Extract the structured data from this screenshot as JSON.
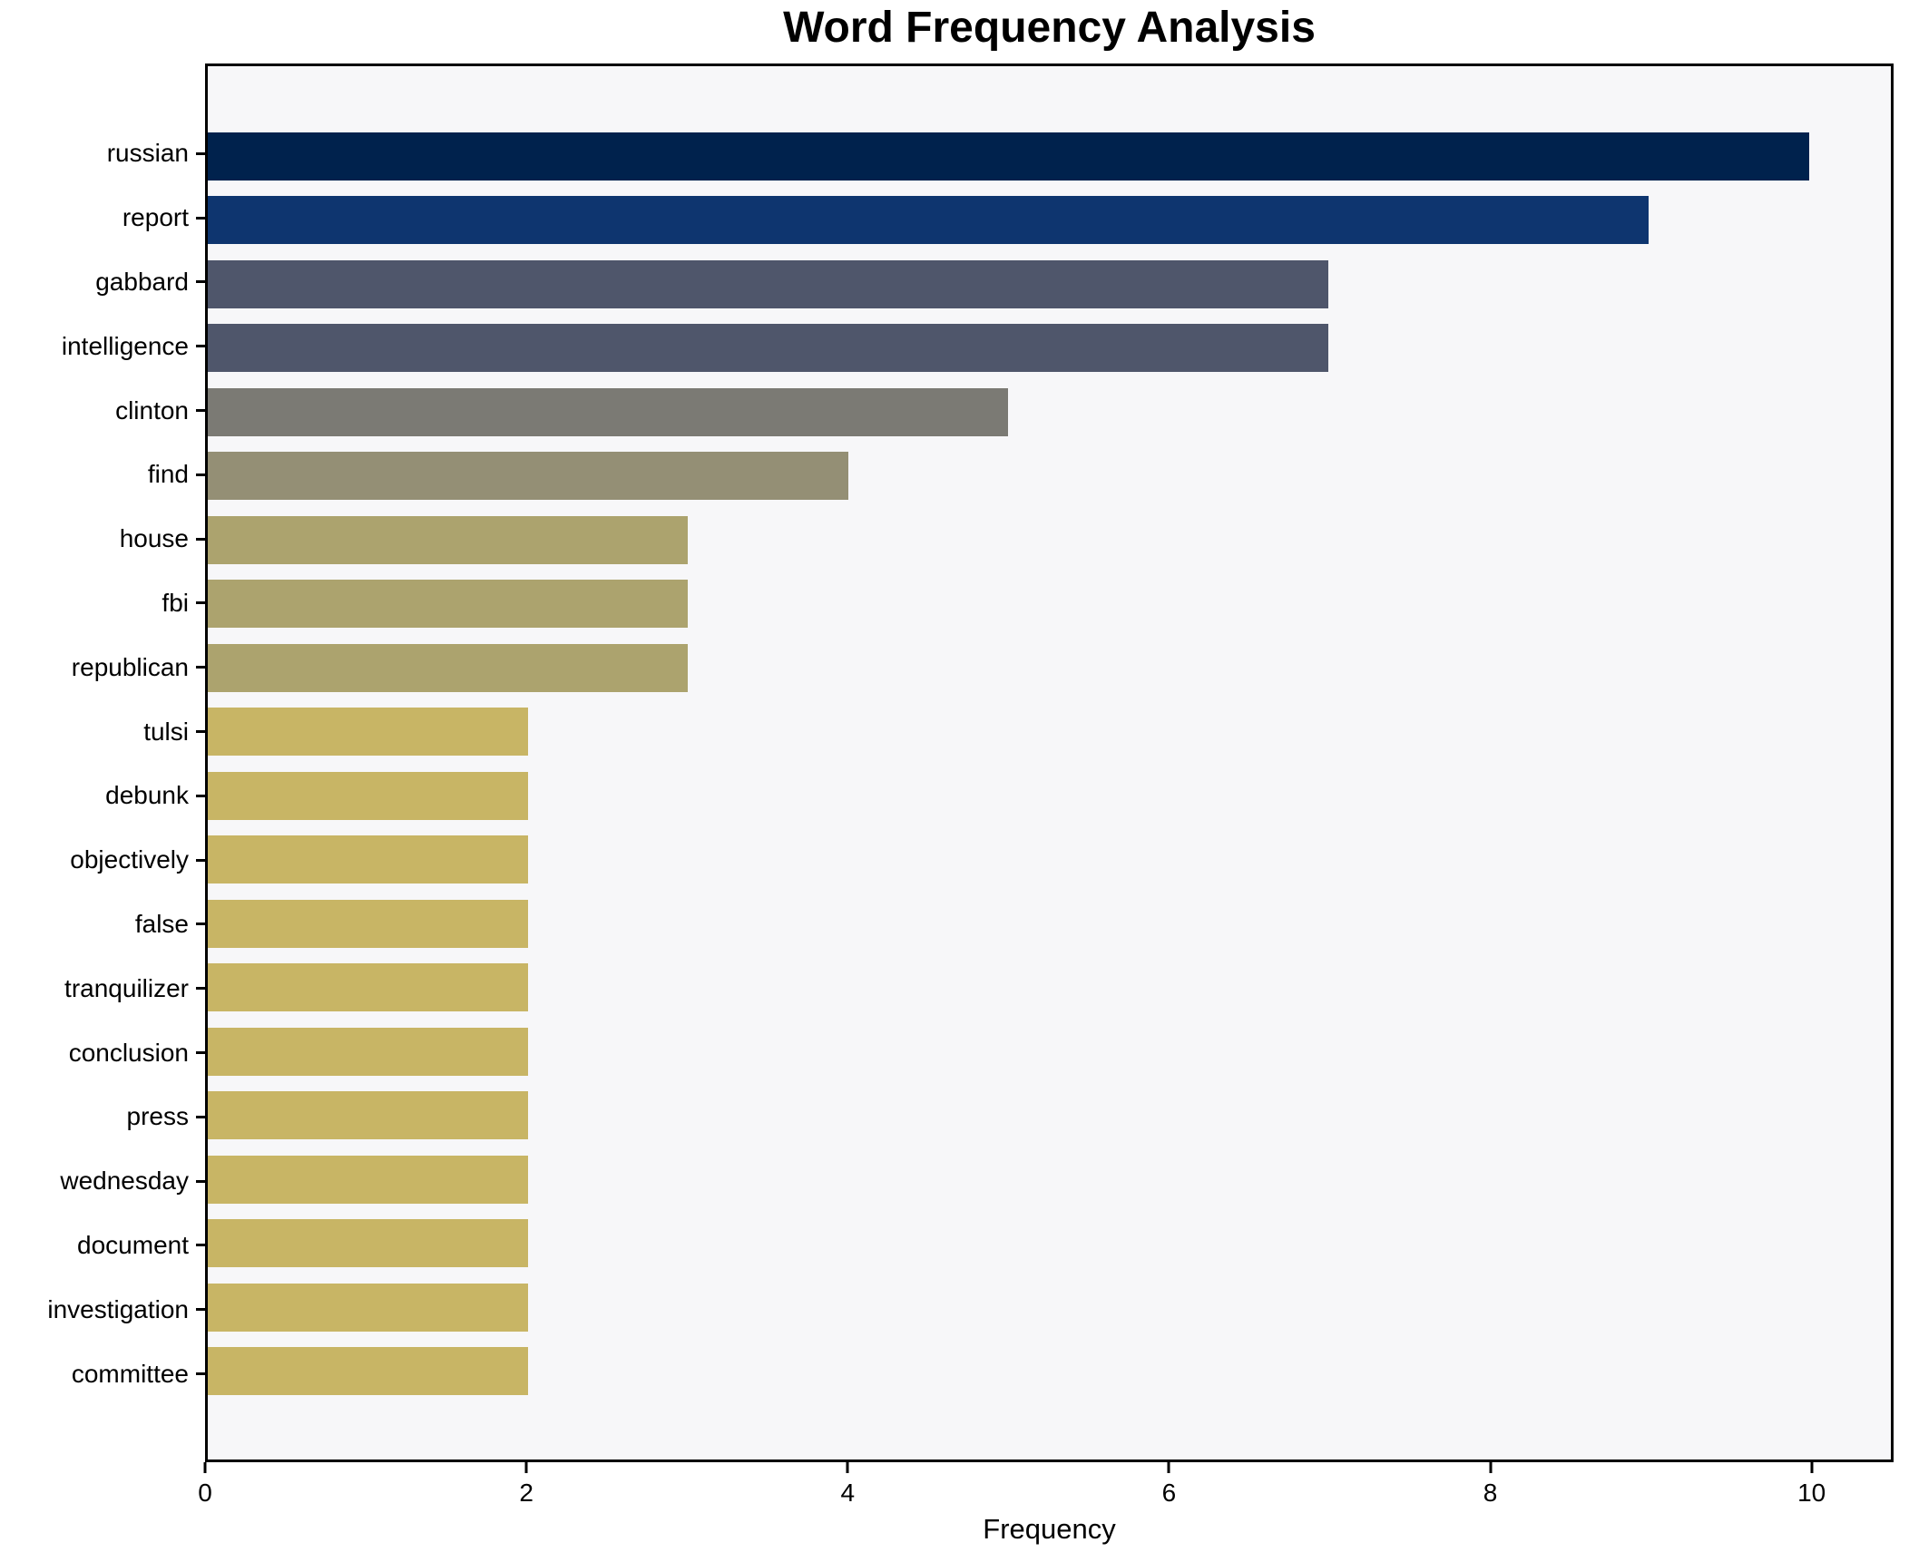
{
  "chart_data": {
    "type": "bar",
    "orientation": "horizontal",
    "title": "Word Frequency Analysis",
    "xlabel": "Frequency",
    "ylabel": "",
    "categories": [
      "russian",
      "report",
      "gabbard",
      "intelligence",
      "clinton",
      "find",
      "house",
      "fbi",
      "republican",
      "tulsi",
      "debunk",
      "objectively",
      "false",
      "tranquilizer",
      "conclusion",
      "press",
      "wednesday",
      "document",
      "investigation",
      "committee"
    ],
    "values": [
      10,
      9,
      7,
      7,
      5,
      4,
      3,
      3,
      3,
      2,
      2,
      2,
      2,
      2,
      2,
      2,
      2,
      2,
      2,
      2
    ],
    "bar_colors": [
      "#00224d",
      "#0e356f",
      "#4f566b",
      "#4f566b",
      "#7b7a74",
      "#948f75",
      "#aca36e",
      "#aca36e",
      "#aca36e",
      "#c8b565",
      "#c8b565",
      "#c8b565",
      "#c8b565",
      "#c8b565",
      "#c8b565",
      "#c8b565",
      "#c8b565",
      "#c8b565",
      "#c8b565",
      "#c8b565"
    ],
    "xticks": [
      0,
      2,
      4,
      6,
      8,
      10
    ],
    "xlim": [
      0,
      10.51
    ],
    "grid": false,
    "legend": null,
    "plot_background": "#f7f7f9",
    "figure_background": "#ffffff",
    "spine_color": "#000000"
  }
}
